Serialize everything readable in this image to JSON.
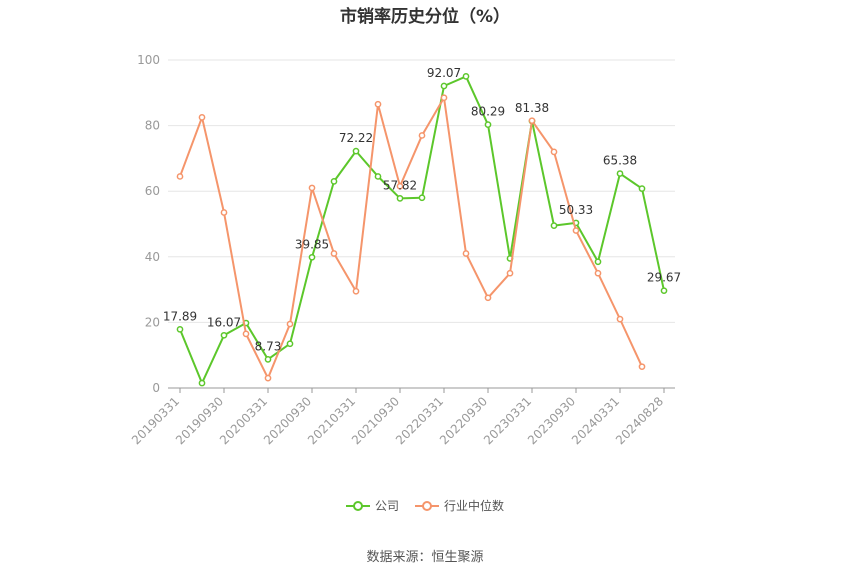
{
  "chart_data": {
    "type": "line",
    "title": "市销率历史分位（%）",
    "source": "数据来源：恒生聚源",
    "colors": {
      "company": "#5cc72b",
      "industry": "#f5956b"
    },
    "ylim": [
      0,
      100
    ],
    "yticks": [
      0,
      20,
      40,
      60,
      80,
      100
    ],
    "grid": true,
    "legend_position": "bottom",
    "x": [
      "20190331",
      "20190630",
      "20190930",
      "20191231",
      "20200331",
      "20200630",
      "20200930",
      "20201231",
      "20210331",
      "20210630",
      "20210930",
      "20211231",
      "20220331",
      "20220630",
      "20220930",
      "20221231",
      "20230331",
      "20230630",
      "20230930",
      "20231231",
      "20240331",
      "20240630",
      "20240828"
    ],
    "xtick_labels": [
      "20190331",
      "20190930",
      "20200331",
      "20200930",
      "20210331",
      "20210930",
      "20220331",
      "20220930",
      "20230331",
      "20230930",
      "20240331",
      "20240828"
    ],
    "series": [
      {
        "name": "公司",
        "values": [
          17.89,
          1.5,
          16.07,
          19.8,
          8.73,
          13.5,
          39.85,
          63.0,
          72.22,
          64.5,
          57.82,
          58.0,
          92.07,
          95.0,
          80.29,
          39.5,
          81.38,
          49.5,
          50.33,
          38.5,
          65.38,
          60.8,
          29.67
        ]
      },
      {
        "name": "行业中位数",
        "values": [
          64.5,
          82.5,
          53.5,
          16.5,
          3.0,
          19.5,
          61.0,
          41.0,
          29.5,
          86.5,
          61.5,
          77.0,
          88.5,
          41.0,
          27.5,
          35.0,
          81.5,
          72.0,
          48.0,
          35.0,
          21.0,
          6.5,
          null
        ]
      }
    ],
    "data_labels": [
      {
        "index": 0,
        "text": "17.89"
      },
      {
        "index": 2,
        "text": "16.07"
      },
      {
        "index": 4,
        "text": "8.73"
      },
      {
        "index": 6,
        "text": "39.85"
      },
      {
        "index": 8,
        "text": "72.22"
      },
      {
        "index": 10,
        "text": "57.82"
      },
      {
        "index": 12,
        "text": "92.07"
      },
      {
        "index": 14,
        "text": "80.29"
      },
      {
        "index": 16,
        "text": "81.38"
      },
      {
        "index": 18,
        "text": "50.33"
      },
      {
        "index": 20,
        "text": "65.38"
      },
      {
        "index": 22,
        "text": "29.67"
      }
    ]
  }
}
